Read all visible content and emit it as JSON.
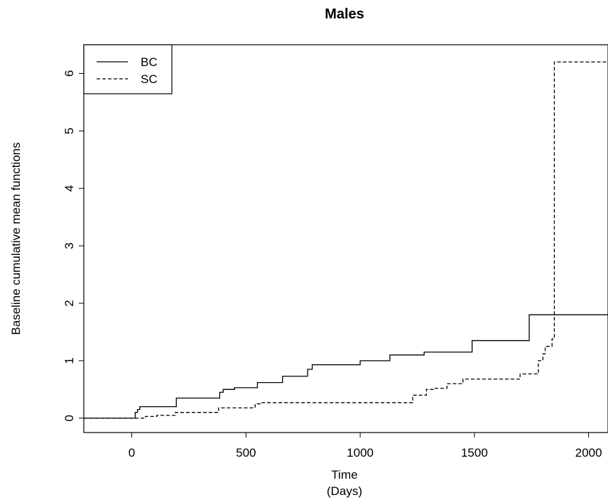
{
  "chart_data": {
    "type": "line",
    "step": true,
    "title": "Males",
    "xlabel": "Time",
    "xlabel2": "(Days)",
    "ylabel": "Baseline cumulative mean functions",
    "xlim": [
      -210,
      2085
    ],
    "ylim": [
      -0.25,
      6.5
    ],
    "xticks": [
      0,
      500,
      1000,
      1500,
      2000
    ],
    "yticks": [
      0,
      1,
      2,
      3,
      4,
      5,
      6
    ],
    "legend": {
      "position": "top-left",
      "entries": [
        "BC",
        "SC"
      ]
    },
    "grid": false,
    "series": [
      {
        "name": "BC",
        "linestyle": "solid",
        "x": [
          -210,
          15,
          25,
          35,
          195,
          385,
          400,
          450,
          550,
          660,
          770,
          790,
          1000,
          1130,
          1280,
          1490,
          1740,
          2085
        ],
        "y": [
          0,
          0.1,
          0.15,
          0.2,
          0.35,
          0.45,
          0.5,
          0.53,
          0.62,
          0.73,
          0.85,
          0.93,
          1.0,
          1.1,
          1.15,
          1.35,
          1.8,
          1.8
        ]
      },
      {
        "name": "SC",
        "linestyle": "dashed",
        "x": [
          -210,
          60,
          110,
          190,
          380,
          540,
          570,
          1230,
          1290,
          1320,
          1380,
          1450,
          1700,
          1780,
          1800,
          1810,
          1840,
          1850,
          2085
        ],
        "y": [
          0,
          0.03,
          0.05,
          0.1,
          0.18,
          0.25,
          0.27,
          0.4,
          0.5,
          0.52,
          0.6,
          0.68,
          0.77,
          1.0,
          1.12,
          1.25,
          1.38,
          6.2,
          6.2
        ]
      }
    ]
  }
}
